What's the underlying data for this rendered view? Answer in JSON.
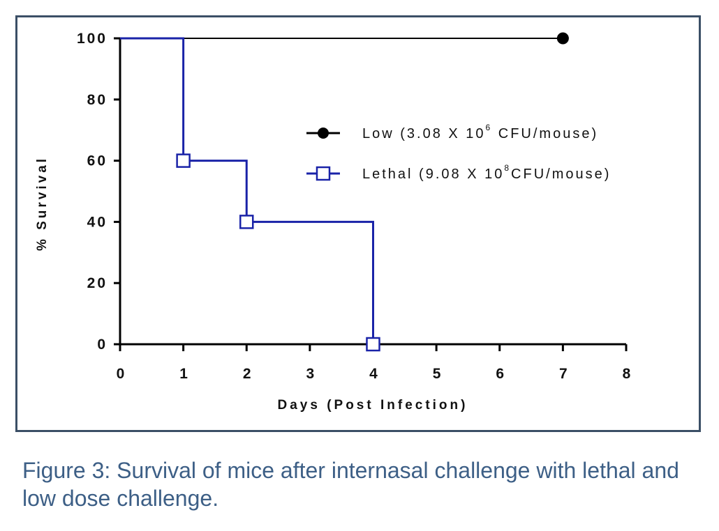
{
  "chart_data": {
    "type": "line",
    "title": "",
    "xlabel": "Days (Post Infection)",
    "ylabel": "% Survival",
    "xlim": [
      0,
      8
    ],
    "ylim": [
      0,
      100
    ],
    "x_ticks": [
      0,
      1,
      2,
      3,
      4,
      5,
      6,
      7,
      8
    ],
    "y_ticks": [
      0,
      20,
      40,
      60,
      80,
      100
    ],
    "step": true,
    "grid": false,
    "legend_position": "right",
    "series": [
      {
        "name": "Low (3.08 X 10^6 CFU/mouse)",
        "legend_base": "Low (3.08 X 10",
        "legend_sup": "6",
        "legend_tail": " CFU/mouse)",
        "color": "#000000",
        "marker": "filled-circle",
        "x": [
          0,
          7
        ],
        "y": [
          100,
          100
        ],
        "marker_x": [
          7
        ],
        "marker_y": [
          100
        ]
      },
      {
        "name": "Lethal (9.08 X 10^8 CFU/mouse)",
        "legend_base": "Lethal (9.08 X 10",
        "legend_sup": "8",
        "legend_tail": "CFU/mouse)",
        "color": "#1a23a8",
        "marker": "open-square",
        "x": [
          0,
          1,
          2,
          4
        ],
        "y": [
          100,
          60,
          40,
          0
        ],
        "marker_x": [
          1,
          2,
          4
        ],
        "marker_y": [
          60,
          40,
          0
        ]
      }
    ]
  },
  "caption": "Figure 3: Survival of mice after internasal challenge with lethal and low dose challenge."
}
